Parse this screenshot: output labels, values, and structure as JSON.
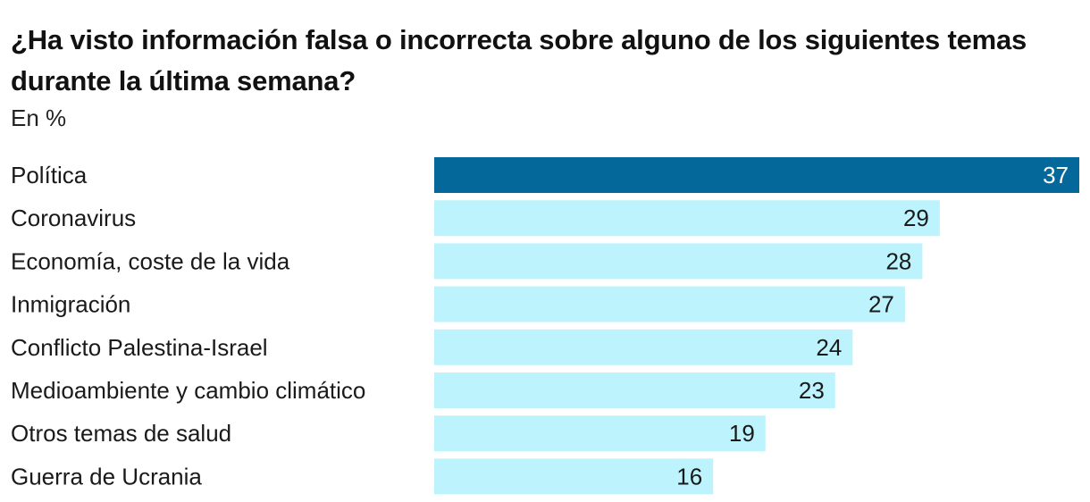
{
  "header": {
    "title": "¿Ha visto información falsa o incorrecta sobre alguno de los siguientes temas durante la última semana?",
    "subtitle": "En %"
  },
  "colors": {
    "highlight_bar": "#05689b",
    "bar": "#bdf3fc",
    "highlight_label": "#ffffff",
    "label": "#1a1a1a"
  },
  "chart_data": {
    "type": "bar",
    "orientation": "horizontal",
    "title": "¿Ha visto información falsa o incorrecta sobre alguno de los siguientes temas durante la última semana?",
    "subtitle": "En %",
    "categories": [
      "Política",
      "Coronavirus",
      "Economía, coste de la vida",
      "Inmigración",
      "Conflicto Palestina-Israel",
      "Medioambiente y cambio climático",
      "Otros temas de salud",
      "Guerra de Ucrania"
    ],
    "values": [
      37,
      29,
      28,
      27,
      24,
      23,
      19,
      16
    ],
    "highlight_index": 0,
    "xlim": [
      0,
      37
    ],
    "grid": false,
    "legend": "none",
    "data_labels": "inside-end"
  }
}
